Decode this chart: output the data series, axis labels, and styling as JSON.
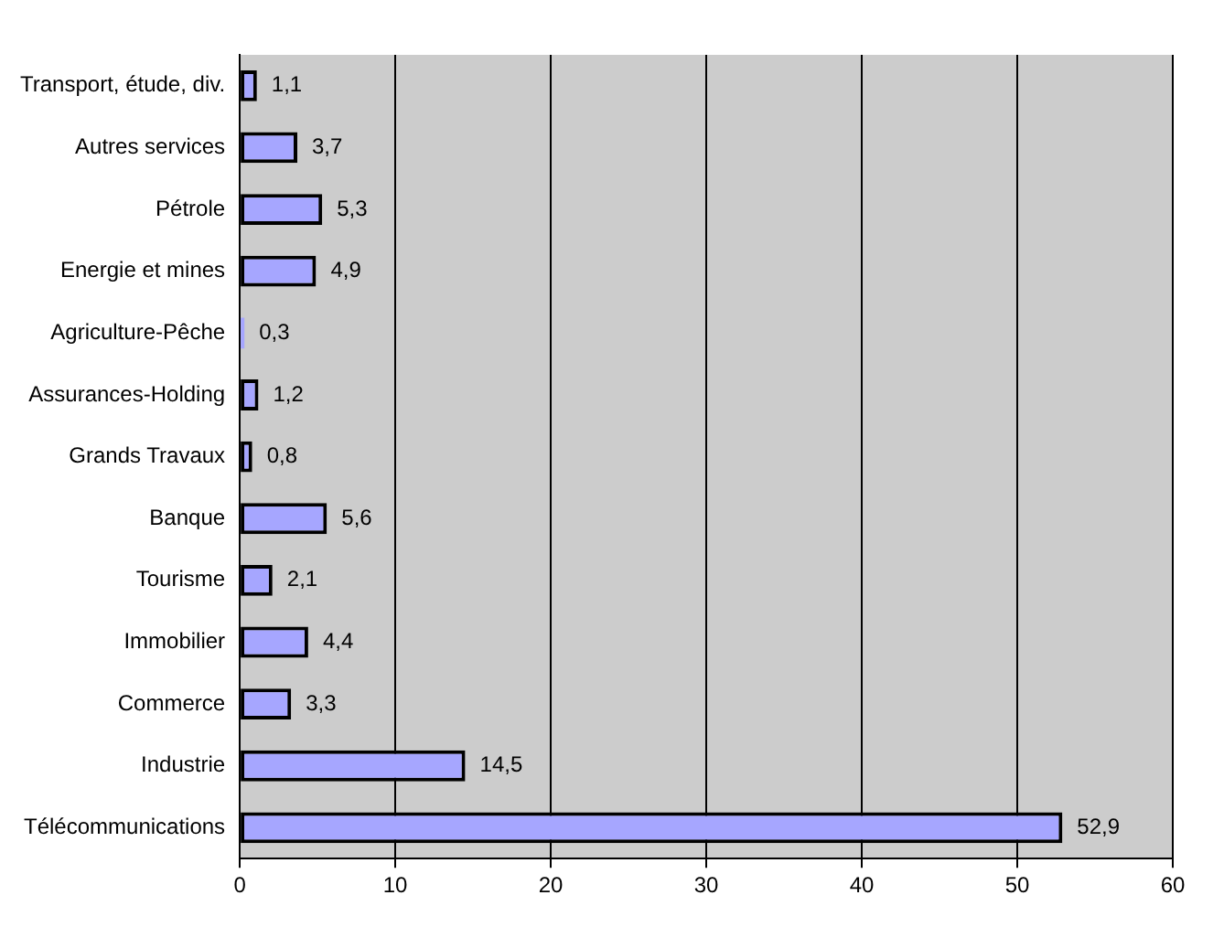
{
  "chart_data": {
    "type": "bar",
    "orientation": "horizontal",
    "categories": [
      "Transport, étude, div.",
      "Autres services",
      "Pétrole",
      "Energie et mines",
      "Agriculture-Pêche",
      "Assurances-Holding",
      "Grands Travaux",
      "Banque",
      "Tourisme",
      "Immobilier",
      "Commerce",
      "Industrie",
      "Télécommunications"
    ],
    "values": [
      1.1,
      3.7,
      5.3,
      4.9,
      0.3,
      1.2,
      0.8,
      5.6,
      2.1,
      4.4,
      3.3,
      14.5,
      52.9
    ],
    "value_labels": [
      "1,1",
      "3,7",
      "5,3",
      "4,9",
      "0,3",
      "1,2",
      "0,8",
      "5,6",
      "2,1",
      "4,4",
      "3,3",
      "14,5",
      "52,9"
    ],
    "color": "#a6a6ff",
    "xlim": [
      0,
      60
    ],
    "xticks": [
      0,
      10,
      20,
      30,
      40,
      50,
      60
    ],
    "grid": "x",
    "legend": false
  }
}
